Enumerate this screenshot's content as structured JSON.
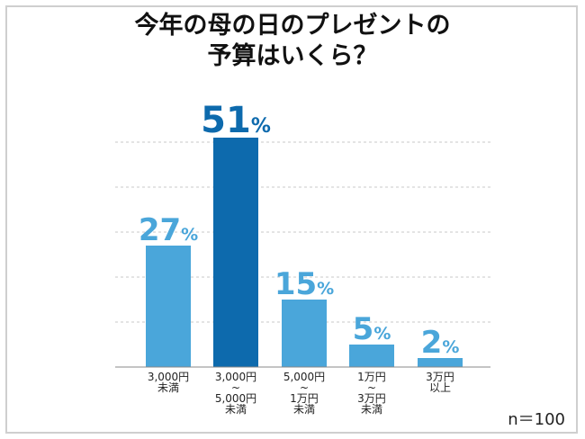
{
  "chart_data": {
    "type": "bar",
    "title_line1": "今年の母の日のプレゼントの",
    "title_line2": "予算はいくら？",
    "categories": [
      [
        "3,000円",
        "未満"
      ],
      [
        "3,000円",
        "~",
        "5,000円",
        "未満"
      ],
      [
        "5,000円",
        "~",
        "1万円",
        "未満"
      ],
      [
        "1万円",
        "~",
        "3万円",
        "未満"
      ],
      [
        "3万円",
        "以上"
      ]
    ],
    "values": [
      27,
      51,
      15,
      5,
      2
    ],
    "unit": "%",
    "ylim": [
      0,
      55
    ],
    "grid": true,
    "highlight_index": 1,
    "sample_note": "n＝100",
    "colors": {
      "bar": "#4aa6da",
      "highlight": "#0d6aad",
      "label": "#4aa6da",
      "highlight_label": "#0d6aad",
      "grid": "#c8c8c8"
    }
  }
}
